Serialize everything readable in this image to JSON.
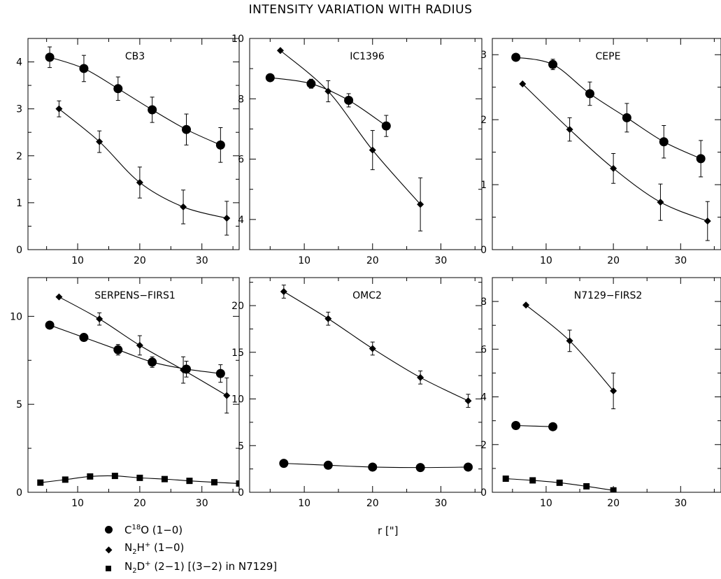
{
  "title": "INTENSITY VARIATION WITH RADIUS",
  "xlabel": "r [\"]",
  "legend": [
    {
      "marker": "circle",
      "label_main": "C",
      "label_sup": "18",
      "label_rest": "O (1−0)"
    },
    {
      "marker": "diamond",
      "label_main": "N",
      "label_sub": "2",
      "label_mid": "H",
      "label_sup": "+",
      "label_rest": " (1−0)"
    },
    {
      "marker": "square",
      "label_main": "N",
      "label_sub": "2",
      "label_mid": "D",
      "label_sup": "+",
      "label_rest": " (2−1) [(3−2) in N7129]"
    }
  ],
  "chart_data": [
    {
      "type": "scatter",
      "title": "CB3",
      "xlim": [
        2,
        36
      ],
      "ylim": [
        0,
        4.5
      ],
      "xticks": [
        10,
        20,
        30
      ],
      "yticks": [
        0,
        1,
        2,
        3,
        4
      ],
      "series": [
        {
          "marker": "circle",
          "x": [
            5.5,
            11,
            16.5,
            22,
            27.5,
            33
          ],
          "y": [
            4.1,
            3.86,
            3.43,
            2.98,
            2.56,
            2.23
          ],
          "err": [
            0.22,
            0.28,
            0.25,
            0.27,
            0.33,
            0.37
          ]
        },
        {
          "marker": "diamond",
          "x": [
            7,
            13.5,
            20,
            27,
            34
          ],
          "y": [
            3.0,
            2.3,
            1.43,
            0.91,
            0.67
          ],
          "err": [
            0.17,
            0.23,
            0.33,
            0.36,
            0.36
          ]
        }
      ]
    },
    {
      "type": "scatter",
      "title": "IC1396",
      "xlim": [
        2,
        36
      ],
      "ylim": [
        3,
        10
      ],
      "xticks": [
        10,
        20,
        30
      ],
      "yticks": [
        4,
        6,
        8,
        10
      ],
      "series": [
        {
          "marker": "circle",
          "x": [
            5,
            11,
            16.5,
            22
          ],
          "y": [
            8.7,
            8.5,
            7.95,
            7.1
          ],
          "err": [
            0,
            0.15,
            0.22,
            0.35
          ]
        },
        {
          "marker": "diamond",
          "x": [
            6.5,
            13.5,
            20,
            27
          ],
          "y": [
            9.6,
            8.25,
            6.3,
            4.5
          ],
          "err": [
            0,
            0.35,
            0.65,
            0.88
          ]
        }
      ]
    },
    {
      "type": "scatter",
      "title": "CEPE",
      "xlim": [
        2,
        36
      ],
      "ylim": [
        0,
        3.25
      ],
      "xticks": [
        10,
        20,
        30
      ],
      "yticks": [
        0,
        1,
        2,
        3
      ],
      "series": [
        {
          "marker": "circle",
          "x": [
            5.5,
            11,
            16.5,
            22,
            27.5,
            33
          ],
          "y": [
            2.96,
            2.85,
            2.4,
            2.03,
            1.66,
            1.4
          ],
          "err": [
            0,
            0.08,
            0.18,
            0.22,
            0.25,
            0.28
          ]
        },
        {
          "marker": "diamond",
          "x": [
            6.5,
            13.5,
            20,
            27,
            34
          ],
          "y": [
            2.55,
            1.85,
            1.25,
            0.73,
            0.44
          ],
          "err": [
            0,
            0.18,
            0.23,
            0.28,
            0.3
          ]
        }
      ]
    },
    {
      "type": "scatter",
      "title": "SERPENS−FIRS1",
      "xlim": [
        2,
        36
      ],
      "ylim": [
        0,
        12.2
      ],
      "xticks": [
        10,
        20,
        30
      ],
      "yticks": [
        0,
        5,
        10
      ],
      "series": [
        {
          "marker": "circle",
          "x": [
            5.5,
            11,
            16.5,
            22,
            27.5,
            33
          ],
          "y": [
            9.5,
            8.8,
            8.1,
            7.4,
            7.0,
            6.75
          ],
          "err": [
            0,
            0,
            0.3,
            0.3,
            0.45,
            0.5
          ]
        },
        {
          "marker": "diamond",
          "x": [
            7,
            13.5,
            20,
            27,
            34
          ],
          "y": [
            11.1,
            9.85,
            8.35,
            6.95,
            5.5
          ],
          "err": [
            0,
            0.35,
            0.55,
            0.75,
            1.0
          ]
        },
        {
          "marker": "square",
          "x": [
            4,
            8,
            12,
            16,
            20,
            24,
            28,
            32,
            36
          ],
          "y": [
            0.55,
            0.72,
            0.9,
            0.93,
            0.82,
            0.75,
            0.65,
            0.57,
            0.5
          ],
          "err": [
            0,
            0,
            0,
            0,
            0,
            0,
            0,
            0,
            0
          ]
        }
      ]
    },
    {
      "type": "scatter",
      "title": "OMC2",
      "xlim": [
        2,
        36
      ],
      "ylim": [
        0,
        23
      ],
      "xticks": [
        10,
        20,
        30
      ],
      "yticks": [
        0,
        5,
        10,
        15,
        20
      ],
      "series": [
        {
          "marker": "circle",
          "x": [
            7,
            13.5,
            20,
            27,
            34
          ],
          "y": [
            3.1,
            2.9,
            2.7,
            2.65,
            2.7
          ],
          "err": [
            0,
            0,
            0,
            0,
            0
          ]
        },
        {
          "marker": "diamond",
          "x": [
            7,
            13.5,
            20,
            27,
            34
          ],
          "y": [
            21.5,
            18.6,
            15.4,
            12.3,
            9.8
          ],
          "err": [
            0.7,
            0.7,
            0.7,
            0.7,
            0.7
          ]
        }
      ]
    },
    {
      "type": "scatter",
      "title": "N7129−FIRS2",
      "xlim": [
        2,
        36
      ],
      "ylim": [
        0,
        9
      ],
      "xticks": [
        10,
        20,
        30
      ],
      "yticks": [
        0,
        2,
        4,
        6,
        8
      ],
      "series": [
        {
          "marker": "circle",
          "x": [
            5.5,
            11
          ],
          "y": [
            2.8,
            2.75
          ],
          "err": [
            0,
            0
          ]
        },
        {
          "marker": "diamond",
          "x": [
            7,
            13.5,
            20
          ],
          "y": [
            7.85,
            6.35,
            4.25
          ],
          "err": [
            0,
            0.45,
            0.75
          ]
        },
        {
          "marker": "square",
          "x": [
            4,
            8,
            12,
            16,
            20
          ],
          "y": [
            0.57,
            0.5,
            0.4,
            0.25,
            0.08
          ],
          "err": [
            0,
            0,
            0,
            0,
            0
          ]
        }
      ]
    }
  ]
}
